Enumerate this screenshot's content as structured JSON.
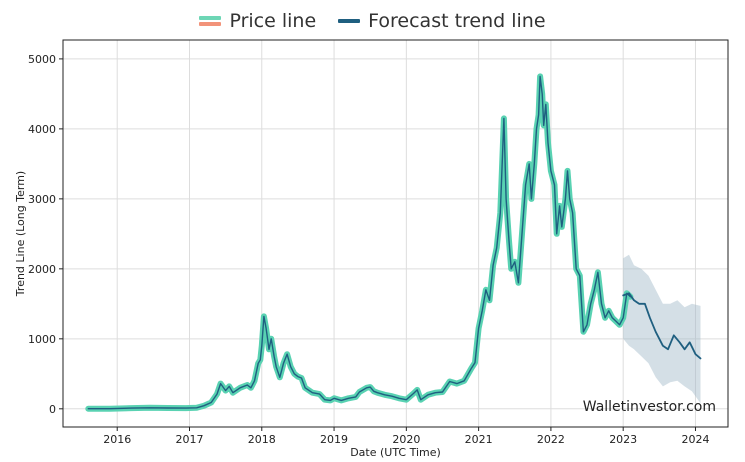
{
  "chart_data": {
    "type": "line",
    "title": "",
    "xlabel": "Date (UTC Time)",
    "ylabel": "Trend Line (Long Term)",
    "xlim": [
      2015.25,
      2024.45
    ],
    "ylim": [
      -260,
      5270
    ],
    "x_ticks": [
      "2016",
      "2017",
      "2018",
      "2019",
      "2020",
      "2021",
      "2022",
      "2023",
      "2024"
    ],
    "y_ticks": [
      "0",
      "1000",
      "2000",
      "3000",
      "4000",
      "5000"
    ],
    "grid": true,
    "legend": {
      "placement": "top-center"
    },
    "watermark": "Walletinvestor.com",
    "series": [
      {
        "name": "Price line",
        "color": "#59d2b2",
        "legend_colors": [
          "#6dd6b5",
          "#f2937a"
        ],
        "points": [
          [
            2015.6,
            1
          ],
          [
            2015.9,
            1
          ],
          [
            2016.2,
            10
          ],
          [
            2016.45,
            14
          ],
          [
            2016.7,
            11
          ],
          [
            2016.95,
            10
          ],
          [
            2017.1,
            15
          ],
          [
            2017.2,
            45
          ],
          [
            2017.3,
            90
          ],
          [
            2017.38,
            210
          ],
          [
            2017.43,
            360
          ],
          [
            2017.5,
            260
          ],
          [
            2017.55,
            320
          ],
          [
            2017.6,
            230
          ],
          [
            2017.7,
            300
          ],
          [
            2017.8,
            340
          ],
          [
            2017.85,
            300
          ],
          [
            2017.9,
            400
          ],
          [
            2017.95,
            650
          ],
          [
            2017.98,
            700
          ],
          [
            2018.0,
            900
          ],
          [
            2018.03,
            1320
          ],
          [
            2018.06,
            1150
          ],
          [
            2018.1,
            850
          ],
          [
            2018.13,
            1000
          ],
          [
            2018.17,
            750
          ],
          [
            2018.2,
            600
          ],
          [
            2018.25,
            450
          ],
          [
            2018.3,
            650
          ],
          [
            2018.35,
            780
          ],
          [
            2018.4,
            600
          ],
          [
            2018.45,
            500
          ],
          [
            2018.5,
            460
          ],
          [
            2018.55,
            440
          ],
          [
            2018.6,
            300
          ],
          [
            2018.7,
            230
          ],
          [
            2018.8,
            210
          ],
          [
            2018.87,
            130
          ],
          [
            2018.95,
            120
          ],
          [
            2019.0,
            150
          ],
          [
            2019.1,
            120
          ],
          [
            2019.2,
            150
          ],
          [
            2019.3,
            170
          ],
          [
            2019.35,
            240
          ],
          [
            2019.45,
            300
          ],
          [
            2019.5,
            310
          ],
          [
            2019.55,
            250
          ],
          [
            2019.6,
            230
          ],
          [
            2019.7,
            200
          ],
          [
            2019.8,
            180
          ],
          [
            2019.9,
            150
          ],
          [
            2020.0,
            130
          ],
          [
            2020.1,
            220
          ],
          [
            2020.15,
            270
          ],
          [
            2020.2,
            130
          ],
          [
            2020.3,
            200
          ],
          [
            2020.4,
            230
          ],
          [
            2020.5,
            240
          ],
          [
            2020.6,
            390
          ],
          [
            2020.7,
            360
          ],
          [
            2020.8,
            400
          ],
          [
            2020.9,
            580
          ],
          [
            2020.95,
            660
          ],
          [
            2021.0,
            1150
          ],
          [
            2021.05,
            1400
          ],
          [
            2021.1,
            1700
          ],
          [
            2021.15,
            1550
          ],
          [
            2021.2,
            2050
          ],
          [
            2021.25,
            2300
          ],
          [
            2021.3,
            2800
          ],
          [
            2021.35,
            4150
          ],
          [
            2021.38,
            3000
          ],
          [
            2021.42,
            2400
          ],
          [
            2021.45,
            2000
          ],
          [
            2021.5,
            2100
          ],
          [
            2021.55,
            1800
          ],
          [
            2021.6,
            2500
          ],
          [
            2021.65,
            3200
          ],
          [
            2021.7,
            3500
          ],
          [
            2021.73,
            3000
          ],
          [
            2021.77,
            3500
          ],
          [
            2021.8,
            4000
          ],
          [
            2021.83,
            4200
          ],
          [
            2021.85,
            4750
          ],
          [
            2021.88,
            4500
          ],
          [
            2021.9,
            4050
          ],
          [
            2021.93,
            4350
          ],
          [
            2021.96,
            3800
          ],
          [
            2022.0,
            3400
          ],
          [
            2022.05,
            3200
          ],
          [
            2022.08,
            2500
          ],
          [
            2022.12,
            2900
          ],
          [
            2022.15,
            2600
          ],
          [
            2022.2,
            3000
          ],
          [
            2022.23,
            3400
          ],
          [
            2022.26,
            3000
          ],
          [
            2022.3,
            2800
          ],
          [
            2022.35,
            2000
          ],
          [
            2022.4,
            1900
          ],
          [
            2022.45,
            1100
          ],
          [
            2022.5,
            1200
          ],
          [
            2022.55,
            1500
          ],
          [
            2022.6,
            1700
          ],
          [
            2022.65,
            1950
          ],
          [
            2022.7,
            1500
          ],
          [
            2022.75,
            1300
          ],
          [
            2022.8,
            1400
          ],
          [
            2022.85,
            1300
          ],
          [
            2022.9,
            1250
          ],
          [
            2022.95,
            1200
          ],
          [
            2023.0,
            1300
          ],
          [
            2023.05,
            1650
          ],
          [
            2023.1,
            1600
          ]
        ]
      },
      {
        "name": "Forecast trend line",
        "color": "#1f5f80",
        "points": [
          [
            2023.0,
            1620
          ],
          [
            2023.08,
            1650
          ],
          [
            2023.15,
            1550
          ],
          [
            2023.22,
            1500
          ],
          [
            2023.3,
            1500
          ],
          [
            2023.37,
            1300
          ],
          [
            2023.45,
            1100
          ],
          [
            2023.55,
            900
          ],
          [
            2023.62,
            850
          ],
          [
            2023.7,
            1050
          ],
          [
            2023.78,
            950
          ],
          [
            2023.85,
            850
          ],
          [
            2023.92,
            950
          ],
          [
            2024.0,
            780
          ],
          [
            2024.07,
            720
          ]
        ],
        "band": {
          "upper": [
            [
              2023.0,
              2150
            ],
            [
              2023.08,
              2200
            ],
            [
              2023.15,
              2050
            ],
            [
              2023.25,
              2000
            ],
            [
              2023.35,
              1900
            ],
            [
              2023.45,
              1700
            ],
            [
              2023.55,
              1500
            ],
            [
              2023.65,
              1500
            ],
            [
              2023.75,
              1550
            ],
            [
              2023.85,
              1450
            ],
            [
              2023.95,
              1500
            ],
            [
              2024.07,
              1470
            ]
          ],
          "lower": [
            [
              2023.0,
              1000
            ],
            [
              2023.08,
              900
            ],
            [
              2023.15,
              850
            ],
            [
              2023.25,
              750
            ],
            [
              2023.35,
              650
            ],
            [
              2023.45,
              450
            ],
            [
              2023.55,
              320
            ],
            [
              2023.65,
              380
            ],
            [
              2023.75,
              400
            ],
            [
              2023.85,
              320
            ],
            [
              2023.95,
              250
            ],
            [
              2024.07,
              80
            ]
          ],
          "color": "#9fb8c8"
        }
      }
    ]
  }
}
